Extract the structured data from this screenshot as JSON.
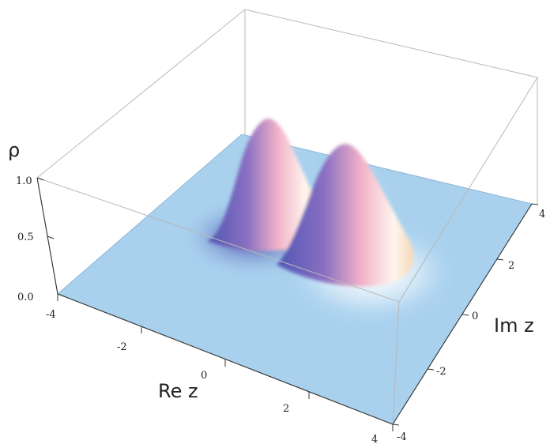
{
  "chart_data": {
    "type": "surface3d",
    "zlabel": "ρ",
    "xlabel": "Re z",
    "ylabel": "Im z",
    "x_range": [
      -4,
      4
    ],
    "y_range": [
      -4,
      4
    ],
    "z_range": [
      0,
      1
    ],
    "x_ticks": [
      "-4",
      "-2",
      "0",
      "2",
      "4"
    ],
    "y_ticks": [
      "-4",
      "-2",
      "0",
      "2",
      "4"
    ],
    "z_ticks": [
      "0.0",
      "0.5",
      "1.0"
    ],
    "peaks": [
      {
        "re": -1.2,
        "im": 1.4,
        "height": 1.0
      },
      {
        "re": 1.0,
        "im": 1.2,
        "height": 0.92
      }
    ],
    "colors": {
      "floor": "#a9d1ee",
      "peak_blue": "#4f56b3",
      "peak_pink": "#f2b2c8",
      "peak_light": "#fff6ee"
    }
  }
}
